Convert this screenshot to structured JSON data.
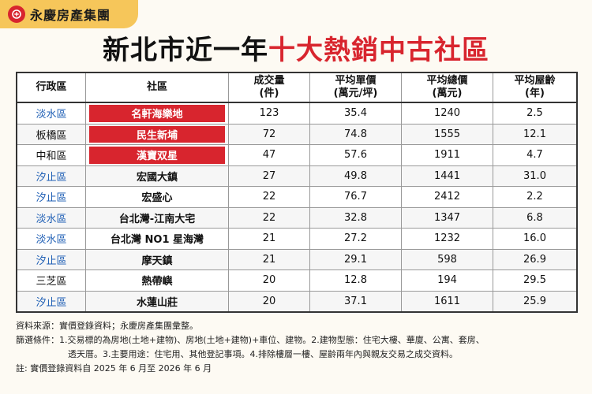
{
  "brand": {
    "name": "永慶房產集團"
  },
  "title": {
    "part1": "新北市近一年",
    "part2": "十大熱銷中古社區"
  },
  "table": {
    "headers": [
      {
        "l1": "行政區",
        "l2": ""
      },
      {
        "l1": "社區",
        "l2": ""
      },
      {
        "l1": "成交量",
        "l2": "(件)"
      },
      {
        "l1": "平均單價",
        "l2": "(萬元/坪)"
      },
      {
        "l1": "平均總價",
        "l2": "(萬元)"
      },
      {
        "l1": "平均屋齡",
        "l2": "(年)"
      }
    ],
    "rows": [
      {
        "district": "淡水區",
        "blue": true,
        "name": "名軒海樂地",
        "highlight": true,
        "volume": "123",
        "unit_price": "35.4",
        "total_price": "1240",
        "age": "2.5"
      },
      {
        "district": "板橋區",
        "blue": false,
        "name": "民生新埔",
        "highlight": true,
        "volume": "72",
        "unit_price": "74.8",
        "total_price": "1555",
        "age": "12.1"
      },
      {
        "district": "中和區",
        "blue": false,
        "name": "漢寶双星",
        "highlight": true,
        "volume": "47",
        "unit_price": "57.6",
        "total_price": "1911",
        "age": "4.7"
      },
      {
        "district": "汐止區",
        "blue": true,
        "name": "宏國大鎮",
        "highlight": false,
        "volume": "27",
        "unit_price": "49.8",
        "total_price": "1441",
        "age": "31.0"
      },
      {
        "district": "汐止區",
        "blue": true,
        "name": "宏盛心",
        "highlight": false,
        "volume": "22",
        "unit_price": "76.7",
        "total_price": "2412",
        "age": "2.2"
      },
      {
        "district": "淡水區",
        "blue": true,
        "name": "台北灣-江南大宅",
        "highlight": false,
        "volume": "22",
        "unit_price": "32.8",
        "total_price": "1347",
        "age": "6.8"
      },
      {
        "district": "淡水區",
        "blue": true,
        "name": "台北灣 NO1 星海灣",
        "highlight": false,
        "volume": "21",
        "unit_price": "27.2",
        "total_price": "1232",
        "age": "16.0"
      },
      {
        "district": "汐止區",
        "blue": true,
        "name": "摩天鎮",
        "highlight": false,
        "volume": "21",
        "unit_price": "29.1",
        "total_price": "598",
        "age": "26.9"
      },
      {
        "district": "三芝區",
        "blue": false,
        "name": "熱帶嶼",
        "highlight": false,
        "volume": "20",
        "unit_price": "12.8",
        "total_price": "194",
        "age": "29.5"
      },
      {
        "district": "汐止區",
        "blue": true,
        "name": "水蓮山莊",
        "highlight": false,
        "volume": "20",
        "unit_price": "37.1",
        "total_price": "1611",
        "age": "25.9"
      }
    ]
  },
  "footer": {
    "source": "資料來源：實價登錄資料；永慶房產集團彙整。",
    "filter1": "篩選條件：1.交易標的為房地(土地+建物)、房地(土地+建物)+車位、建物。2.建物型態：住宅大樓、華廈、公寓、套房、",
    "filter2": "透天厝。3.主要用途：住宅用、其他登記事項。4.排除樓層一樓、屋齡兩年內與親友交易之成交資料。",
    "note": "註: 實價登錄資料自 2025 年 6 月至 2026 年 6 月"
  },
  "colors": {
    "accent_red": "#d8252e",
    "brand_yellow": "#f6c65a",
    "district_blue": "#1f5fb5"
  }
}
